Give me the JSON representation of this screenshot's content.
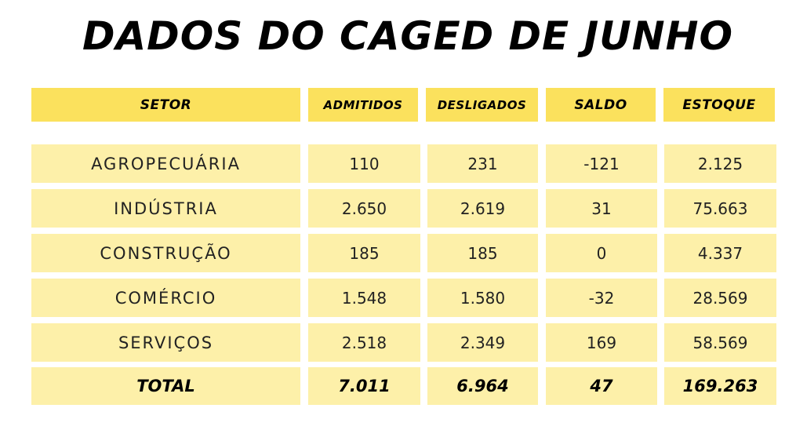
{
  "title": "DADOS DO CAGED DE JUNHO",
  "headers": [
    "SETOR",
    "ADMITIDOS",
    "DESLIGADOS",
    "SALDO",
    "ESTOQUE"
  ],
  "rows": [
    [
      "AGROPECUÁRIA",
      "110",
      "231",
      "-121",
      "2.125"
    ],
    [
      "INDÚSTRIA",
      "2.650",
      "2.619",
      "31",
      "75.663"
    ],
    [
      "CONSTRUÇÃO",
      "185",
      "185",
      "0",
      "4.337"
    ],
    [
      "COMÉRCIO",
      "1.548",
      "1.580",
      "-32",
      "28.569"
    ],
    [
      "SERVIÇOS",
      "2.518",
      "2.349",
      "169",
      "58.569"
    ]
  ],
  "total": [
    "TOTAL",
    "7.011",
    "6.964",
    "47",
    "169.263"
  ],
  "colors": {
    "header_bg": "#fbe15d",
    "row_bg": "#fdf0a9",
    "text": "#000000"
  }
}
